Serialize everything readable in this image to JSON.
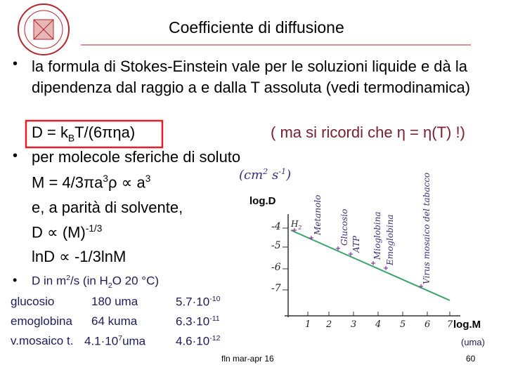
{
  "header": {
    "title": "Coefficiente di diffusione"
  },
  "bullets": {
    "b1": "la formula di Stokes-Einstein vale per le soluzioni liquide e dà la dipendenza dal raggio a e dalla T assoluta (vedi termodinamica)",
    "formula1": [
      "D = k",
      "B",
      "T/(6πηa)"
    ],
    "note1": "( ma si ricordi che η = η(T) !)",
    "b2": "per molecole sferiche di soluto",
    "formula2": [
      "M = 4/3πa",
      "3",
      "ρ ∝ a",
      "3"
    ],
    "line3": "e, a parità di solvente,",
    "formula3": [
      "D ∝ (M)",
      "-1/3"
    ],
    "formula4": "lnD ∝ -1/3lnM",
    "b3": [
      "D in m",
      "2",
      "/s (in H",
      "2",
      "O 20 °C)"
    ]
  },
  "table": {
    "rows": [
      {
        "name": "glucosio",
        "mass": [
          "180 uma"
        ],
        "d": [
          "5.7·10",
          "-10"
        ]
      },
      {
        "name": "emoglobina",
        "mass": [
          "64 kuma"
        ],
        "d": [
          "6.3·10",
          "-11"
        ]
      },
      {
        "name": "v.mosaico t.",
        "mass": [
          "4.1·10",
          "7",
          "uma"
        ],
        "d": [
          "4.6·10",
          "-12"
        ]
      }
    ]
  },
  "plot": {
    "unit": [
      "(cm",
      "2",
      " s",
      "-1",
      ")"
    ],
    "ylabel": "log.D",
    "xlabel": "log.M",
    "xunit": "(uma)",
    "yticks": [
      "-4",
      "-5",
      "-6",
      "-7"
    ],
    "xticks": [
      "1",
      "2",
      "3",
      "4",
      "5",
      "6",
      "7"
    ],
    "h2": [
      "H",
      "2"
    ],
    "molecules": [
      "Metanolo",
      "Glucosio",
      "ATP",
      "Mioglobina",
      "Emoglobina",
      "Virus mosaico del tabacco"
    ]
  },
  "footer": {
    "source": "fln mar-apr 16",
    "page": "60"
  }
}
